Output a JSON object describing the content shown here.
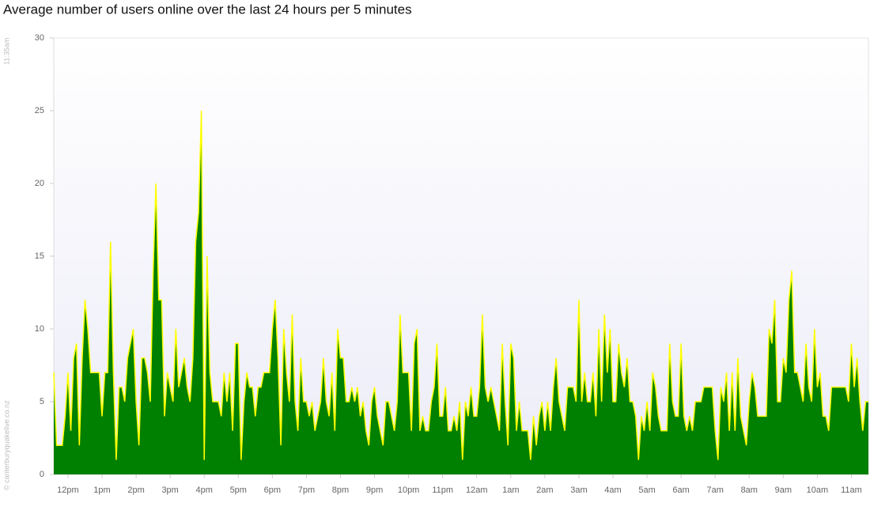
{
  "chart_data": {
    "type": "area",
    "title": "Average number of users online over the last 24 hours per 5 minutes",
    "timestamp": "11:35am",
    "credit": "© canterburyquakelive.co.nz",
    "fill_color": "#008000",
    "line_color": "#ffff00",
    "values": [
      7,
      2,
      2,
      2,
      4,
      7,
      3,
      8,
      9,
      2,
      8,
      12,
      10,
      7,
      7,
      7,
      7,
      4,
      7,
      7,
      16,
      7,
      1,
      6,
      6,
      5,
      8,
      9,
      10,
      5,
      2,
      8,
      8,
      7,
      5,
      14,
      20,
      12,
      12,
      4,
      7,
      6,
      5,
      10,
      6,
      7,
      8,
      6,
      5,
      8,
      16,
      18,
      25,
      1,
      15,
      7,
      5,
      5,
      5,
      4,
      7,
      5,
      7,
      3,
      9,
      9,
      1,
      5,
      7,
      6,
      6,
      4,
      6,
      6,
      7,
      7,
      7,
      10,
      12,
      8,
      2,
      10,
      7,
      5,
      11,
      5,
      3,
      8,
      5,
      5,
      4,
      5,
      3,
      4,
      5,
      8,
      5,
      4,
      7,
      3,
      10,
      8,
      8,
      5,
      5,
      6,
      5,
      6,
      4,
      5,
      3,
      2,
      5,
      6,
      4,
      3,
      2,
      5,
      5,
      4,
      3,
      5,
      11,
      7,
      7,
      7,
      3,
      9,
      10,
      3,
      4,
      3,
      3,
      5,
      6,
      9,
      4,
      4,
      6,
      3,
      3,
      4,
      3,
      5,
      1,
      5,
      4,
      6,
      4,
      4,
      6,
      11,
      6,
      5,
      6,
      5,
      4,
      3,
      9,
      5,
      2,
      9,
      8,
      3,
      5,
      3,
      3,
      3,
      1,
      4,
      2,
      4,
      5,
      3,
      5,
      3,
      6,
      8,
      5,
      4,
      3,
      6,
      6,
      6,
      5,
      12,
      5,
      7,
      5,
      5,
      7,
      4,
      10,
      5,
      11,
      7,
      10,
      5,
      5,
      9,
      7,
      6,
      8,
      5,
      5,
      4,
      1,
      4,
      3,
      5,
      3,
      7,
      6,
      4,
      3,
      3,
      3,
      9,
      5,
      4,
      4,
      9,
      4,
      3,
      4,
      3,
      5,
      5,
      5,
      6,
      6,
      6,
      6,
      3,
      1,
      6,
      5,
      7,
      3,
      7,
      3,
      8,
      4,
      3,
      2,
      5,
      7,
      6,
      4,
      4,
      4,
      4,
      10,
      9,
      12,
      5,
      5,
      8,
      7,
      12,
      14,
      7,
      7,
      6,
      5,
      9,
      6,
      5,
      10,
      6,
      7,
      4,
      4,
      3,
      6,
      6,
      6,
      6,
      6,
      6,
      5,
      9,
      6,
      8,
      5,
      3,
      5,
      5
    ],
    "xlim": [
      0,
      287
    ],
    "xticks": [
      {
        "value": 5,
        "label": "12pm"
      },
      {
        "value": 17,
        "label": "1pm"
      },
      {
        "value": 29,
        "label": "2pm"
      },
      {
        "value": 41,
        "label": "3pm"
      },
      {
        "value": 53,
        "label": "4pm"
      },
      {
        "value": 65,
        "label": "5pm"
      },
      {
        "value": 77,
        "label": "6pm"
      },
      {
        "value": 89,
        "label": "7pm"
      },
      {
        "value": 101,
        "label": "8pm"
      },
      {
        "value": 113,
        "label": "9pm"
      },
      {
        "value": 125,
        "label": "10pm"
      },
      {
        "value": 137,
        "label": "11pm"
      },
      {
        "value": 149,
        "label": "12am"
      },
      {
        "value": 161,
        "label": "1am"
      },
      {
        "value": 173,
        "label": "2am"
      },
      {
        "value": 185,
        "label": "3am"
      },
      {
        "value": 197,
        "label": "4am"
      },
      {
        "value": 209,
        "label": "5am"
      },
      {
        "value": 221,
        "label": "6am"
      },
      {
        "value": 233,
        "label": "7am"
      },
      {
        "value": 245,
        "label": "8am"
      },
      {
        "value": 257,
        "label": "9am"
      },
      {
        "value": 269,
        "label": "10am"
      },
      {
        "value": 281,
        "label": "11am"
      }
    ],
    "ylim": [
      0,
      30
    ],
    "yticks": [
      0,
      5,
      10,
      15,
      20,
      25,
      30
    ]
  }
}
